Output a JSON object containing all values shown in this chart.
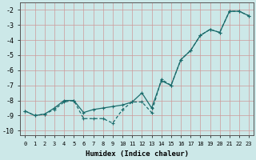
{
  "xlabel": "Humidex (Indice chaleur)",
  "background_color": "#cce8e8",
  "grid_color": "#b0cccc",
  "line_color": "#1a6b6b",
  "xlim": [
    -0.5,
    23.5
  ],
  "ylim": [
    -10.3,
    -1.5
  ],
  "yticks": [
    -10,
    -9,
    -8,
    -7,
    -6,
    -5,
    -4,
    -3,
    -2
  ],
  "xticks": [
    0,
    1,
    2,
    3,
    4,
    5,
    6,
    7,
    8,
    9,
    10,
    11,
    12,
    13,
    14,
    15,
    16,
    17,
    18,
    19,
    20,
    21,
    22,
    23
  ],
  "series1_x": [
    0,
    1,
    2,
    3,
    4,
    5,
    6,
    7,
    8,
    9,
    10,
    11,
    12,
    13,
    14,
    15,
    16,
    17,
    18,
    19,
    20,
    21,
    22,
    23
  ],
  "series1_y": [
    -8.7,
    -9.0,
    -8.9,
    -8.5,
    -8.0,
    -8.0,
    -8.8,
    -8.6,
    -8.5,
    -8.4,
    -8.3,
    -8.1,
    -7.5,
    -8.5,
    -6.7,
    -7.0,
    -5.3,
    -4.7,
    -3.7,
    -3.3,
    -3.5,
    -2.1,
    -2.1,
    -2.4
  ],
  "series2_x": [
    0,
    1,
    2,
    3,
    4,
    5,
    6,
    7,
    8,
    9,
    10,
    11,
    12,
    13,
    14,
    15,
    16,
    17,
    18,
    19,
    20,
    21,
    22,
    23
  ],
  "series2_y": [
    -8.7,
    -9.0,
    -8.9,
    -8.6,
    -8.1,
    -8.0,
    -9.2,
    -9.2,
    -9.2,
    -9.5,
    -8.6,
    -8.1,
    -8.1,
    -8.8,
    -6.6,
    -7.0,
    -5.3,
    -4.7,
    -3.7,
    -3.3,
    -3.5,
    -2.1,
    -2.1,
    -2.4
  ]
}
